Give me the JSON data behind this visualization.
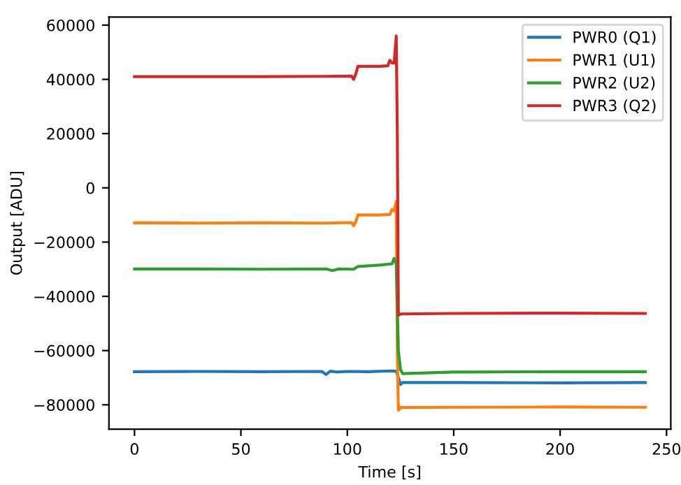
{
  "chart_data": {
    "type": "line",
    "xlabel": "Time [s]",
    "ylabel": "Output [ADU]",
    "xlim": [
      -12,
      252
    ],
    "ylim": [
      -89000,
      63000
    ],
    "xticks": [
      0,
      50,
      100,
      150,
      200,
      250
    ],
    "yticks": [
      -80000,
      -60000,
      -40000,
      -20000,
      0,
      20000,
      40000,
      60000
    ],
    "grid": false,
    "legend": "top right",
    "marker": "none",
    "line_style": "solid",
    "series": [
      {
        "name": "PWR0 (Q1)",
        "color": "#1f77b4",
        "x": [
          0,
          30,
          60,
          88,
          90,
          92,
          95,
          100,
          110,
          120,
          123,
          124,
          125,
          126,
          150,
          200,
          240
        ],
        "values": [
          -67800,
          -67700,
          -67800,
          -67700,
          -68800,
          -67600,
          -67900,
          -67700,
          -67800,
          -67500,
          -67600,
          -70000,
          -72500,
          -71800,
          -71800,
          -71900,
          -71800
        ]
      },
      {
        "name": "PWR1 (U1)",
        "color": "#ff7f0e",
        "x": [
          0,
          30,
          60,
          90,
          102,
          103,
          104,
          105,
          115,
          120,
          121,
          122,
          123,
          123.5,
          124,
          125,
          150,
          200,
          240
        ],
        "values": [
          -12900,
          -13000,
          -12900,
          -13000,
          -12800,
          -14000,
          -12500,
          -10000,
          -10000,
          -9800,
          -8000,
          -8500,
          -5000,
          -60000,
          -82000,
          -81000,
          -80900,
          -80800,
          -80900
        ]
      },
      {
        "name": "PWR2 (U2)",
        "color": "#2ca02c",
        "x": [
          0,
          30,
          60,
          90,
          93,
          96,
          103,
          104,
          105,
          115,
          121,
          122,
          123,
          124,
          125,
          126,
          150,
          200,
          240
        ],
        "values": [
          -29900,
          -29900,
          -30000,
          -29900,
          -30500,
          -29900,
          -30000,
          -29500,
          -29000,
          -28500,
          -28000,
          -26000,
          -28000,
          -60000,
          -67000,
          -68500,
          -67900,
          -67800,
          -67800
        ]
      },
      {
        "name": "PWR3 (Q2)",
        "color": "#d62728",
        "x": [
          0,
          30,
          60,
          90,
          102,
          103,
          104,
          105,
          115,
          119,
          120,
          121,
          122,
          123,
          123.5,
          124,
          125,
          150,
          200,
          240
        ],
        "values": [
          41000,
          41000,
          41000,
          41100,
          41200,
          40000,
          42000,
          44800,
          44800,
          45000,
          47000,
          46000,
          46000,
          56000,
          20000,
          -47000,
          -46500,
          -46300,
          -46200,
          -46300
        ]
      }
    ]
  }
}
